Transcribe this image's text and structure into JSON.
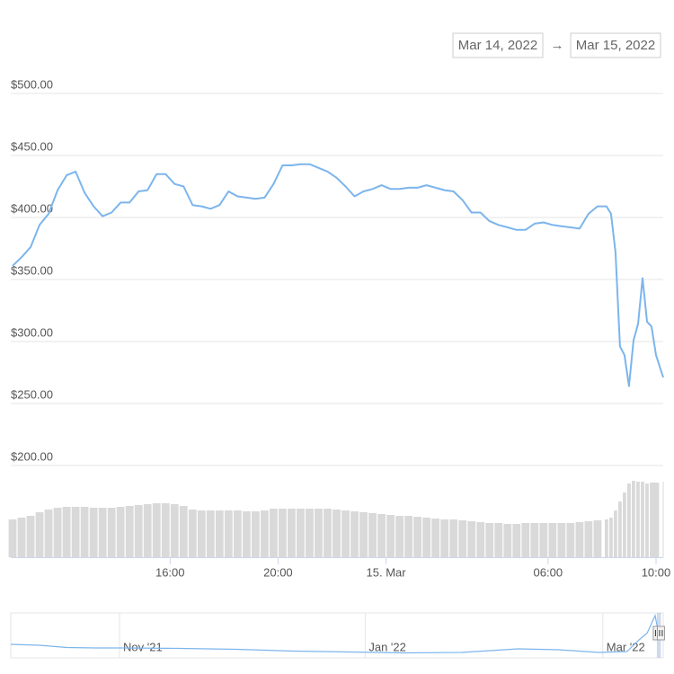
{
  "date_range": {
    "from": "Mar 14, 2022",
    "separator": "→",
    "to": "Mar 15, 2022"
  },
  "chart_data": {
    "type": "line",
    "x": [
      "2022-03-14T10:10",
      "2022-03-14T10:30",
      "2022-03-14T10:50",
      "2022-03-14T11:10",
      "2022-03-14T11:30",
      "2022-03-14T11:50",
      "2022-03-14T12:10",
      "2022-03-14T12:30",
      "2022-03-14T12:50",
      "2022-03-14T13:10",
      "2022-03-14T13:30",
      "2022-03-14T13:50",
      "2022-03-14T14:10",
      "2022-03-14T14:30",
      "2022-03-14T14:50",
      "2022-03-14T15:10",
      "2022-03-14T15:30",
      "2022-03-14T15:50",
      "2022-03-14T16:10",
      "2022-03-14T16:30",
      "2022-03-14T16:50",
      "2022-03-14T17:10",
      "2022-03-14T17:30",
      "2022-03-14T17:50",
      "2022-03-14T18:10",
      "2022-03-14T18:30",
      "2022-03-14T18:50",
      "2022-03-14T19:10",
      "2022-03-14T19:30",
      "2022-03-14T19:50",
      "2022-03-14T20:10",
      "2022-03-14T20:30",
      "2022-03-14T20:50",
      "2022-03-14T21:10",
      "2022-03-14T21:30",
      "2022-03-14T21:50",
      "2022-03-14T22:10",
      "2022-03-14T22:30",
      "2022-03-14T22:50",
      "2022-03-14T23:10",
      "2022-03-14T23:30",
      "2022-03-14T23:50",
      "2022-03-15T00:10",
      "2022-03-15T00:30",
      "2022-03-15T00:50",
      "2022-03-15T01:10",
      "2022-03-15T01:30",
      "2022-03-15T01:50",
      "2022-03-15T02:10",
      "2022-03-15T02:30",
      "2022-03-15T02:50",
      "2022-03-15T03:10",
      "2022-03-15T03:30",
      "2022-03-15T03:50",
      "2022-03-15T04:10",
      "2022-03-15T04:30",
      "2022-03-15T04:50",
      "2022-03-15T05:10",
      "2022-03-15T05:30",
      "2022-03-15T05:50",
      "2022-03-15T06:10",
      "2022-03-15T06:30",
      "2022-03-15T06:50",
      "2022-03-15T07:10",
      "2022-03-15T07:30",
      "2022-03-15T07:50",
      "2022-03-15T08:10",
      "2022-03-15T08:20",
      "2022-03-15T08:30",
      "2022-03-15T08:40",
      "2022-03-15T08:50",
      "2022-03-15T09:00",
      "2022-03-15T09:10",
      "2022-03-15T09:20",
      "2022-03-15T09:30",
      "2022-03-15T09:40",
      "2022-03-15T09:50",
      "2022-03-15T10:00",
      "2022-03-15T10:16"
    ],
    "xlim": [
      "2022-03-14T10:06",
      "2022-03-15T10:16"
    ],
    "xticks": [
      {
        "value": "2022-03-14T16:00",
        "label": "16:00"
      },
      {
        "value": "2022-03-14T20:00",
        "label": "20:00"
      },
      {
        "value": "2022-03-15T00:00",
        "label": "15. Mar"
      },
      {
        "value": "2022-03-15T06:00",
        "label": "06:00"
      },
      {
        "value": "2022-03-15T10:00",
        "label": "10:00"
      }
    ],
    "ylim": [
      200,
      500
    ],
    "yticks": [
      {
        "value": 200,
        "label": "$200.00"
      },
      {
        "value": 250,
        "label": "$250.00"
      },
      {
        "value": 300,
        "label": "$300.00"
      },
      {
        "value": 350,
        "label": "$350.00"
      },
      {
        "value": 400,
        "label": "$400.00"
      },
      {
        "value": 450,
        "label": "$450.00"
      },
      {
        "value": 500,
        "label": "$500.00"
      }
    ],
    "y2lim": [
      0,
      100
    ],
    "grid": true,
    "series": [
      {
        "color": "#7cb5ec",
        "values": [
          361,
          368,
          376,
          394,
          403,
          422,
          434,
          437,
          420,
          409,
          401,
          404,
          412,
          412,
          421,
          422,
          435,
          435,
          427,
          425,
          410,
          409,
          407,
          410,
          421,
          417,
          416,
          415,
          416,
          427,
          442,
          442,
          443,
          443,
          440,
          437,
          432,
          425,
          417,
          421,
          423,
          426,
          423,
          423,
          424,
          424,
          426,
          424,
          422,
          421,
          414,
          404,
          404,
          397,
          394,
          392,
          390,
          390,
          395,
          396,
          394,
          393,
          392,
          391,
          403,
          409,
          409,
          403,
          372,
          296,
          289,
          264,
          301,
          314,
          351,
          316,
          312,
          289,
          271
        ]
      },
      {
        "color": "#d9d9d9",
        "axis": "y2",
        "values": [
          42,
          44,
          46,
          50,
          53,
          55,
          56,
          56,
          56,
          55,
          55,
          55,
          56,
          57,
          58,
          59,
          60,
          60,
          59,
          57,
          53,
          52,
          52,
          52,
          52,
          52,
          51,
          51,
          52,
          54,
          54,
          54,
          54,
          54,
          54,
          54,
          53,
          52,
          51,
          50,
          49,
          48,
          47,
          46,
          46,
          45,
          44,
          43,
          42,
          42,
          41,
          40,
          39,
          38,
          38,
          37,
          37,
          38,
          38,
          38,
          38,
          38,
          38,
          39,
          40,
          41,
          42,
          44,
          52,
          62,
          72,
          82,
          85,
          84,
          84,
          82,
          83,
          83,
          84
        ]
      }
    ],
    "navigator": {
      "color": "#7cb5ec",
      "x": [
        "2021-10-05",
        "2021-10-12",
        "2021-10-19",
        "2021-10-26",
        "2021-11-02",
        "2021-11-16",
        "2021-11-30",
        "2021-12-14",
        "2021-12-28",
        "2022-01-11",
        "2022-01-25",
        "2022-02-08",
        "2022-02-18",
        "2022-02-28",
        "2022-03-07",
        "2022-03-10",
        "2022-03-12",
        "2022-03-14",
        "2022-03-15"
      ],
      "values": [
        30,
        28,
        23,
        22,
        22,
        21,
        19,
        15,
        13,
        11,
        12,
        20,
        18,
        12,
        14,
        40,
        55,
        94,
        47
      ],
      "xlim": [
        "2021-10-05",
        "2022-03-16"
      ],
      "ylim": [
        0,
        100
      ],
      "xticks": [
        {
          "value": "2021-11-01",
          "label": "Nov '21"
        },
        {
          "value": "2022-01-01",
          "label": "Jan '22"
        },
        {
          "value": "2022-03-01",
          "label": "Mar '22"
        }
      ]
    }
  }
}
